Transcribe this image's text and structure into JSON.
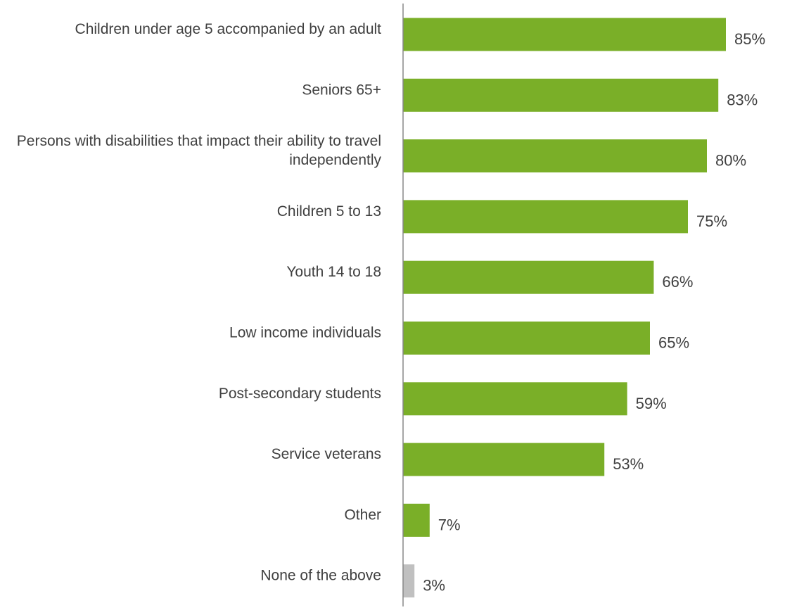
{
  "chart_data": {
    "type": "bar",
    "orientation": "horizontal",
    "title": "",
    "xlabel": "",
    "ylabel": "",
    "xlim": [
      0,
      100
    ],
    "grid": false,
    "legend": "none",
    "value_suffix": "%",
    "categories": [
      "Children under age 5 accompanied by an adult",
      "Seniors 65+",
      "Persons with disabilities that impact their ability to travel independently",
      "Children 5 to 13",
      "Youth 14 to 18",
      "Low income individuals",
      "Post-secondary students",
      "Service veterans",
      "Other",
      "None of the above"
    ],
    "values": [
      85,
      83,
      80,
      75,
      66,
      65,
      59,
      53,
      7,
      3
    ],
    "colors": [
      "#7aaf28",
      "#7aaf28",
      "#7aaf28",
      "#7aaf28",
      "#7aaf28",
      "#7aaf28",
      "#7aaf28",
      "#7aaf28",
      "#7aaf28",
      "#c0c0c0"
    ],
    "axis_color": "#888888",
    "text_color": "#404040"
  }
}
